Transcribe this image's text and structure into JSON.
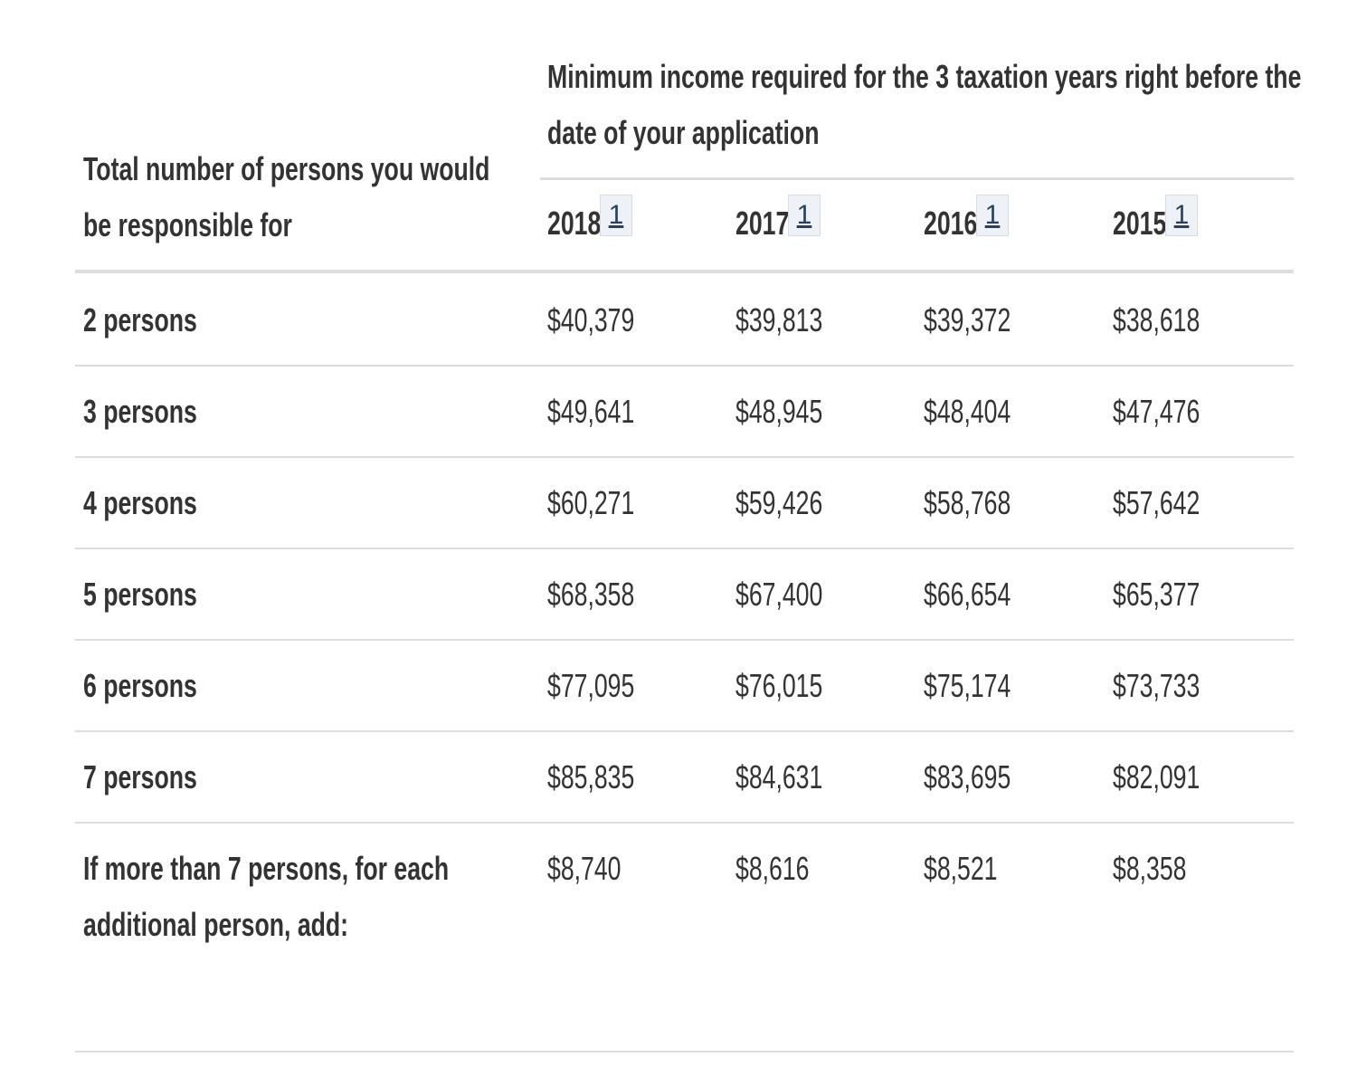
{
  "table": {
    "row_header_label": "Total number of persons you would be responsible for",
    "column_group_label": "Minimum income required for the 3 taxation years right before the date of your application",
    "columns": [
      {
        "year": "2018",
        "footnote": "1"
      },
      {
        "year": "2017",
        "footnote": "1"
      },
      {
        "year": "2016",
        "footnote": "1"
      },
      {
        "year": "2015",
        "footnote": "1"
      }
    ],
    "rows": [
      {
        "label": "2 persons",
        "values": [
          "$40,379",
          "$39,813",
          "$39,372",
          "$38,618"
        ]
      },
      {
        "label": "3 persons",
        "values": [
          "$49,641",
          "$48,945",
          "$48,404",
          "$47,476"
        ]
      },
      {
        "label": "4 persons",
        "values": [
          "$60,271",
          "$59,426",
          "$58,768",
          "$57,642"
        ]
      },
      {
        "label": "5 persons",
        "values": [
          "$68,358",
          "$67,400",
          "$66,654",
          "$65,377"
        ]
      },
      {
        "label": "6 persons",
        "values": [
          "$77,095",
          "$76,015",
          "$75,174",
          "$73,733"
        ]
      },
      {
        "label": "7 persons",
        "values": [
          "$85,835",
          "$84,631",
          "$83,695",
          "$82,091"
        ]
      },
      {
        "label": "If more than 7 persons, for each additional person, add:",
        "values": [
          "$8,740",
          "$8,616",
          "$8,521",
          "$8,358"
        ]
      }
    ]
  }
}
